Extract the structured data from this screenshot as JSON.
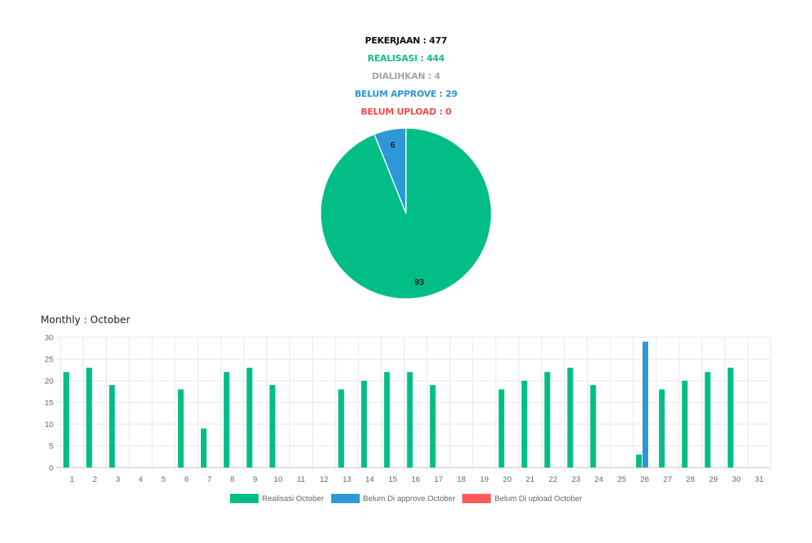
{
  "stats": [
    {
      "label": "PEKERJAAN : 477",
      "color": "#111111"
    },
    {
      "label": "REALISASI : 444",
      "color": "#1aba82"
    },
    {
      "label": "DIALIHKAN : 4",
      "color": "#a8a8a8"
    },
    {
      "label": "BELUM APPROVE : 29",
      "color": "#2f97d8"
    },
    {
      "label": "BELUM UPLOAD : 0",
      "color": "#f24f4f"
    }
  ],
  "monthly_title": "Monthly : October",
  "colors": {
    "realisasi": "#00be86",
    "approve": "#2f97d8",
    "upload": "#ff5a5a"
  },
  "chart_data": [
    {
      "type": "pie",
      "slices": [
        {
          "label": "6",
          "value": 6,
          "color": "#2f97d8"
        },
        {
          "label": "93",
          "value": 93,
          "color": "#00be86"
        }
      ]
    },
    {
      "type": "bar",
      "categories": [
        "1",
        "2",
        "3",
        "4",
        "5",
        "6",
        "7",
        "8",
        "9",
        "10",
        "11",
        "12",
        "13",
        "14",
        "15",
        "16",
        "17",
        "18",
        "19",
        "20",
        "21",
        "22",
        "23",
        "24",
        "25",
        "26",
        "27",
        "28",
        "29",
        "30",
        "31"
      ],
      "series": [
        {
          "name": "Realisasi October",
          "color": "#00be86",
          "values": [
            22,
            23,
            19,
            0,
            0,
            18,
            9,
            22,
            23,
            19,
            0,
            0,
            18,
            20,
            22,
            22,
            19,
            0,
            0,
            18,
            20,
            22,
            23,
            19,
            0,
            3,
            18,
            20,
            22,
            23,
            0
          ]
        },
        {
          "name": "Belum Di approve October",
          "color": "#2f97d8",
          "values": [
            0,
            0,
            0,
            0,
            0,
            0,
            0,
            0,
            0,
            0,
            0,
            0,
            0,
            0,
            0,
            0,
            0,
            0,
            0,
            0,
            0,
            0,
            0,
            0,
            0,
            29,
            0,
            0,
            0,
            0,
            0
          ]
        },
        {
          "name": "Belum Di upload October",
          "color": "#ff5a5a",
          "values": [
            0,
            0,
            0,
            0,
            0,
            0,
            0,
            0,
            0,
            0,
            0,
            0,
            0,
            0,
            0,
            0,
            0,
            0,
            0,
            0,
            0,
            0,
            0,
            0,
            0,
            0,
            0,
            0,
            0,
            0,
            0
          ]
        }
      ],
      "ylim": [
        0,
        30
      ],
      "yticks": [
        0,
        5,
        10,
        15,
        20,
        25,
        30
      ],
      "grid": true,
      "legend": "bottom"
    }
  ]
}
